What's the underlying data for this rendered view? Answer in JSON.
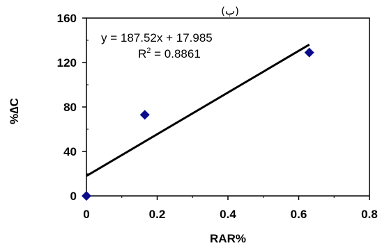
{
  "chart_data": {
    "type": "scatter",
    "panel_label": "(ب)",
    "xlabel": "RAR%",
    "ylabel": "%∆C",
    "xlim": [
      0,
      0.8
    ],
    "ylim": [
      0,
      160
    ],
    "xticks": [
      0,
      0.2,
      0.4,
      0.6,
      0.8
    ],
    "yticks": [
      0,
      40,
      80,
      120,
      160
    ],
    "xtick_labels": [
      "0",
      "0.2",
      "0.4",
      "0.6",
      "0.8"
    ],
    "ytick_labels": [
      "0",
      "40",
      "80",
      "120",
      "160"
    ],
    "grid": false,
    "legend": "none",
    "marker": "diamond",
    "marker_color": "#0b0b8c",
    "points": [
      {
        "x": 0,
        "y": 0
      },
      {
        "x": 0.165,
        "y": 73
      },
      {
        "x": 0.63,
        "y": 129
      }
    ],
    "trendline": {
      "type": "linear",
      "slope": 187.52,
      "intercept": 17.985,
      "x_range": [
        0,
        0.63
      ],
      "color": "#000000"
    },
    "annotations": {
      "equation": "y = 187.52x + 17.985",
      "r2_prefix": "R",
      "r2_sup": "2",
      "r2_value": " = 0.8861"
    }
  }
}
